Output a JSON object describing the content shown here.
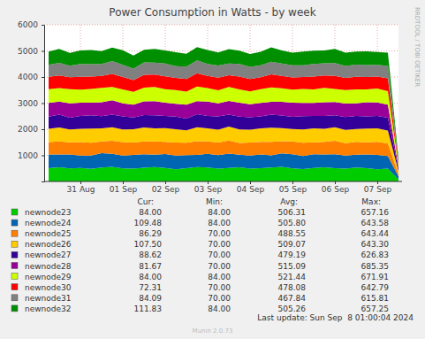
{
  "chart_data": {
    "type": "area",
    "stacked": true,
    "grid": true,
    "title": "Power Consumption in Watts - by week",
    "categories": [
      null,
      null,
      null,
      "31 Aug",
      null,
      null,
      null,
      "01 Sep",
      null,
      null,
      null,
      "02 Sep",
      null,
      null,
      null,
      "03 Sep",
      null,
      null,
      null,
      "04 Sep",
      null,
      null,
      null,
      "05 Sep",
      null,
      null,
      null,
      "06 Sep",
      null,
      null,
      null,
      "07 Sep",
      null,
      null
    ],
    "ylim": [
      0,
      6000
    ],
    "yticks": [
      1000,
      2000,
      3000,
      4000,
      5000,
      6000
    ],
    "legend_columns": [
      "Cur:",
      "Min:",
      "Avg:",
      "Max:"
    ],
    "annotations": [
      "Last update: Sun Sep  8 01:00:04 2024",
      "Munin 2.0.73",
      "RRDTOOL / TOBI OETIKER"
    ],
    "series": [
      {
        "name": "newnode23",
        "color": "#00cc00",
        "values": [
          512,
          540,
          498,
          521,
          480,
          535,
          560,
          502,
          490,
          528,
          547,
          515,
          470,
          508,
          552,
          530,
          495,
          518,
          540,
          489,
          505,
          533,
          561,
          498,
          476,
          520,
          545,
          510,
          488,
          530,
          512,
          470,
          495,
          84
        ],
        "cur": {
          "value": 84,
          "label": "84.00"
        },
        "min": {
          "value": 84,
          "label": "84.00"
        },
        "avg": {
          "value": 506.31,
          "label": "506.31"
        },
        "max": {
          "value": 657.16,
          "label": "657.16"
        }
      },
      {
        "name": "newnode24",
        "color": "#0066b3",
        "values": [
          520,
          495,
          538,
          470,
          512,
          548,
          501,
          489,
          530,
          515,
          478,
          540,
          525,
          497,
          463,
          532,
          510,
          549,
          486,
          505,
          528,
          470,
          515,
          542,
          499,
          523,
          488,
          536,
          507,
          492,
          518,
          545,
          480,
          109.48
        ],
        "cur": {
          "value": 109.48,
          "label": "109.48"
        },
        "min": {
          "value": 84,
          "label": "84.00"
        },
        "avg": {
          "value": 505.8,
          "label": "505.80"
        },
        "max": {
          "value": 643.58,
          "label": "643.58"
        }
      },
      {
        "name": "newnode25",
        "color": "#ff8000",
        "values": [
          480,
          502,
          465,
          515,
          490,
          455,
          498,
          520,
          472,
          487,
          510,
          463,
          495,
          478,
          525,
          468,
          490,
          505,
          450,
          498,
          482,
          515,
          470,
          493,
          508,
          460,
          487,
          512,
          475,
          495,
          468,
          503,
          480,
          86.29
        ],
        "cur": {
          "value": 86.29,
          "label": "86.29"
        },
        "min": {
          "value": 70,
          "label": "70.00"
        },
        "avg": {
          "value": 488.55,
          "label": "488.55"
        },
        "max": {
          "value": 643.44,
          "label": "643.44"
        }
      },
      {
        "name": "newnode26",
        "color": "#ffcc00",
        "values": [
          505,
          530,
          488,
          515,
          542,
          497,
          520,
          480,
          512,
          535,
          498,
          523,
          510,
          475,
          540,
          505,
          488,
          530,
          515,
          492,
          520,
          545,
          500,
          478,
          512,
          535,
          495,
          520,
          507,
          488,
          530,
          515,
          498,
          107.5
        ],
        "cur": {
          "value": 107.5,
          "label": "107.50"
        },
        "min": {
          "value": 70,
          "label": "70.00"
        },
        "avg": {
          "value": 509.07,
          "label": "509.07"
        },
        "max": {
          "value": 643.3,
          "label": "643.30"
        }
      },
      {
        "name": "newnode27",
        "color": "#330099",
        "values": [
          470,
          495,
          455,
          488,
          510,
          465,
          480,
          498,
          445,
          478,
          502,
          468,
          485,
          450,
          495,
          475,
          510,
          460,
          488,
          472,
          455,
          498,
          480,
          465,
          505,
          470,
          490,
          458,
          485,
          500,
          462,
          478,
          490,
          88.62
        ],
        "cur": {
          "value": 88.62,
          "label": "88.62"
        },
        "min": {
          "value": 70,
          "label": "70.00"
        },
        "avg": {
          "value": 479.19,
          "label": "479.19"
        },
        "max": {
          "value": 626.83,
          "label": "626.83"
        }
      },
      {
        "name": "newnode28",
        "color": "#990099",
        "values": [
          520,
          498,
          545,
          510,
          485,
          530,
          552,
          505,
          495,
          525,
          540,
          512,
          488,
          530,
          505,
          548,
          495,
          520,
          535,
          500,
          515,
          490,
          528,
          545,
          510,
          498,
          532,
          505,
          520,
          488,
          540,
          512,
          500,
          81.67
        ],
        "cur": {
          "value": 81.67,
          "label": "81.67"
        },
        "min": {
          "value": 70,
          "label": "70.00"
        },
        "avg": {
          "value": 515.09,
          "label": "515.09"
        },
        "max": {
          "value": 685.35,
          "label": "685.35"
        }
      },
      {
        "name": "newnode29",
        "color": "#ccff00",
        "values": [
          530,
          515,
          545,
          498,
          520,
          552,
          508,
          535,
          490,
          525,
          545,
          512,
          530,
          500,
          555,
          520,
          505,
          538,
          515,
          490,
          528,
          550,
          510,
          495,
          535,
          520,
          545,
          505,
          518,
          530,
          498,
          540,
          515,
          84
        ],
        "cur": {
          "value": 84,
          "label": "84.00"
        },
        "min": {
          "value": 84,
          "label": "84.00"
        },
        "avg": {
          "value": 521.44,
          "label": "521.44"
        },
        "max": {
          "value": 671.91,
          "label": "671.91"
        }
      },
      {
        "name": "newnode30",
        "color": "#ff0000",
        "values": [
          470,
          488,
          455,
          495,
          480,
          462,
          500,
          475,
          450,
          488,
          470,
          495,
          460,
          485,
          505,
          468,
          478,
          452,
          490,
          475,
          462,
          498,
          480,
          470,
          455,
          490,
          475,
          500,
          465,
          482,
          470,
          458,
          488,
          72.31
        ],
        "cur": {
          "value": 72.31,
          "label": "72.31"
        },
        "min": {
          "value": 70,
          "label": "70.00"
        },
        "avg": {
          "value": 478.08,
          "label": "478.08"
        },
        "max": {
          "value": 642.79,
          "label": "642.79"
        }
      },
      {
        "name": "newnode31",
        "color": "#808080",
        "values": [
          460,
          478,
          445,
          485,
          470,
          455,
          490,
          465,
          440,
          478,
          462,
          485,
          450,
          475,
          495,
          458,
          470,
          445,
          480,
          468,
          455,
          488,
          470,
          460,
          448,
          480,
          465,
          490,
          455,
          472,
          460,
          448,
          478,
          84.09
        ],
        "cur": {
          "value": 84.09,
          "label": "84.09"
        },
        "min": {
          "value": 70,
          "label": "70.00"
        },
        "avg": {
          "value": 467.84,
          "label": "467.84"
        },
        "max": {
          "value": 615.81,
          "label": "615.81"
        }
      },
      {
        "name": "newnode32",
        "color": "#008f00",
        "values": [
          510,
          535,
          490,
          520,
          545,
          495,
          515,
          560,
          500,
          480,
          525,
          505,
          540,
          488,
          512,
          530,
          498,
          555,
          510,
          490,
          520,
          545,
          505,
          485,
          530,
          512,
          495,
          540,
          515,
          500,
          525,
          490,
          510,
          111.83
        ],
        "cur": {
          "value": 111.83,
          "label": "111.83"
        },
        "min": {
          "value": 84,
          "label": "84.00"
        },
        "avg": {
          "value": 505.26,
          "label": "505.26"
        },
        "max": {
          "value": 657.25,
          "label": "657.25"
        }
      }
    ]
  }
}
